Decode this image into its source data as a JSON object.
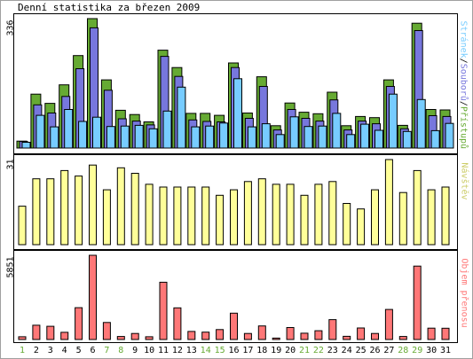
{
  "title": "Denní statistika za březen 2009",
  "colors": {
    "pristupy": "#66aa33",
    "soubory": "#7777dd",
    "stranky": "#77ccff",
    "navstevy": "#ffff99",
    "objem": "#ff7777",
    "weekend_label": "#66aa33",
    "weekday_label": "#000000"
  },
  "chart_data": [
    {
      "type": "bar",
      "title": "Denní statistika za březen 2009",
      "categories": [
        "1",
        "2",
        "3",
        "4",
        "5",
        "6",
        "7",
        "8",
        "9",
        "10",
        "11",
        "12",
        "13",
        "14",
        "15",
        "16",
        "17",
        "18",
        "19",
        "20",
        "21",
        "22",
        "23",
        "24",
        "25",
        "26",
        "27",
        "28",
        "29",
        "30",
        "31"
      ],
      "weekend_days": [
        "1",
        "7",
        "8",
        "14",
        "15",
        "21",
        "22",
        "28",
        "29"
      ],
      "ymax_label": "336",
      "series_label_parts": [
        "Stránek",
        "/",
        "Souborů",
        "/",
        "Přístupů"
      ],
      "series": [
        {
          "name": "Přístupů",
          "color": "#66aa33",
          "values": [
            18,
            140,
            116,
            164,
            240,
            336,
            177,
            98,
            87,
            68,
            254,
            209,
            90,
            90,
            85,
            221,
            91,
            185,
            58,
            117,
            93,
            89,
            145,
            58,
            82,
            79,
            177,
            59,
            324,
            100,
            99
          ]
        },
        {
          "name": "Souborů",
          "color": "#7777dd",
          "values": [
            17,
            112,
            91,
            134,
            206,
            312,
            150,
            76,
            70,
            60,
            238,
            186,
            73,
            69,
            68,
            209,
            77,
            160,
            47,
            100,
            77,
            70,
            125,
            47,
            70,
            63,
            160,
            50,
            305,
            84,
            82
          ]
        },
        {
          "name": "Stránek",
          "color": "#77ccff",
          "values": [
            15,
            85,
            55,
            100,
            69,
            80,
            56,
            57,
            59,
            50,
            96,
            158,
            55,
            57,
            65,
            180,
            55,
            63,
            35,
            81,
            56,
            57,
            90,
            35,
            62,
            46,
            140,
            43,
            126,
            45,
            64
          ]
        }
      ]
    },
    {
      "type": "bar",
      "categories": [
        "1",
        "2",
        "3",
        "4",
        "5",
        "6",
        "7",
        "8",
        "9",
        "10",
        "11",
        "12",
        "13",
        "14",
        "15",
        "16",
        "17",
        "18",
        "19",
        "20",
        "21",
        "22",
        "23",
        "24",
        "25",
        "26",
        "27",
        "28",
        "29",
        "30",
        "31"
      ],
      "ymax_label": "31",
      "series": [
        {
          "name": "Návštěv",
          "color": "#ffff99",
          "values": [
            14,
            24,
            24,
            27,
            25,
            29,
            20,
            28,
            26,
            22,
            21,
            21,
            21,
            21,
            18,
            20,
            23,
            24,
            22,
            22,
            18,
            22,
            23,
            15,
            13,
            20,
            31,
            19,
            27,
            20,
            21
          ]
        }
      ]
    },
    {
      "type": "bar",
      "categories": [
        "1",
        "2",
        "3",
        "4",
        "5",
        "6",
        "7",
        "8",
        "9",
        "10",
        "11",
        "12",
        "13",
        "14",
        "15",
        "16",
        "17",
        "18",
        "19",
        "20",
        "21",
        "22",
        "23",
        "24",
        "25",
        "26",
        "27",
        "28",
        "29",
        "30",
        "31"
      ],
      "ymax_label": "5851",
      "series": [
        {
          "name": "Objem přenosu",
          "color": "#ff7777",
          "values": [
            191,
            990,
            920,
            500,
            2210,
            5851,
            1180,
            210,
            420,
            190,
            3980,
            2200,
            560,
            510,
            690,
            1830,
            420,
            940,
            100,
            830,
            440,
            610,
            1380,
            220,
            800,
            420,
            2090,
            210,
            5100,
            790,
            780
          ]
        }
      ]
    }
  ]
}
